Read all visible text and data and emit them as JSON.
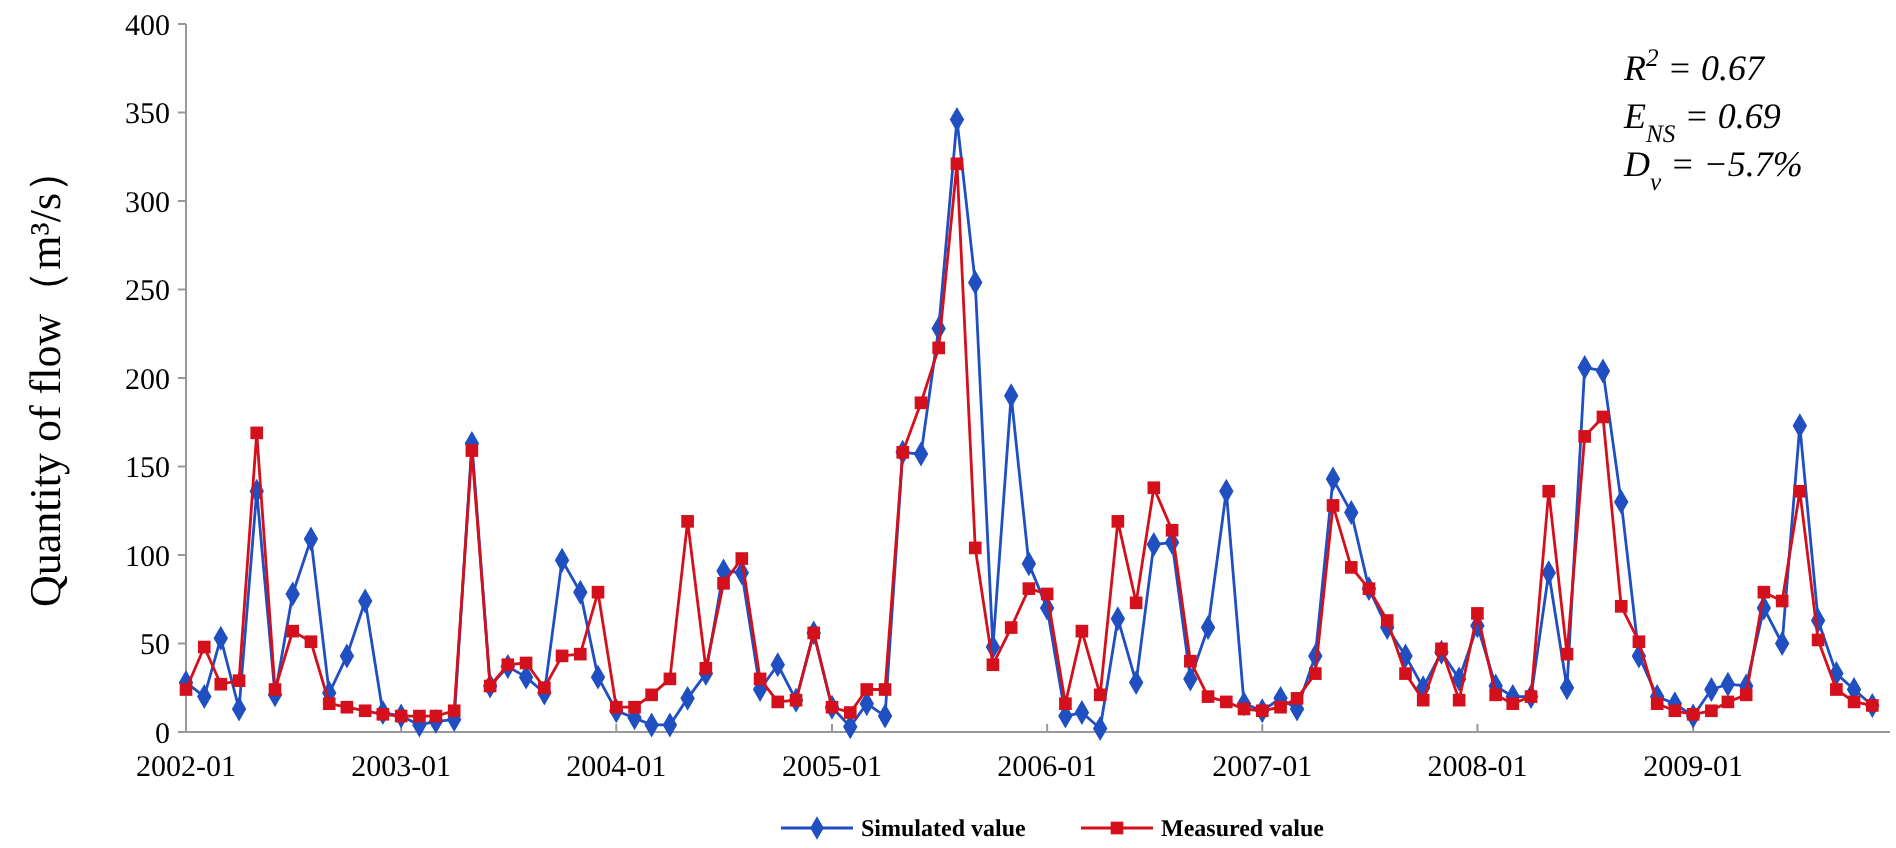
{
  "chart_data": {
    "type": "line",
    "xlabel": null,
    "ylabel": "Quantity of flow（m³/s）",
    "x": [
      "2002-01",
      "2002-02",
      "2002-03",
      "2002-04",
      "2002-05",
      "2002-06",
      "2002-07",
      "2002-08",
      "2002-09",
      "2002-10",
      "2002-11",
      "2002-12",
      "2003-01",
      "2003-02",
      "2003-03",
      "2003-04",
      "2003-05",
      "2003-06",
      "2003-07",
      "2003-08",
      "2003-09",
      "2003-10",
      "2003-11",
      "2003-12",
      "2004-01",
      "2004-02",
      "2004-03",
      "2004-04",
      "2004-05",
      "2004-06",
      "2004-07",
      "2004-08",
      "2004-09",
      "2004-10",
      "2004-11",
      "2004-12",
      "2005-01",
      "2005-02",
      "2005-03",
      "2005-04",
      "2005-05",
      "2005-06",
      "2005-07",
      "2005-08",
      "2005-09",
      "2005-10",
      "2005-11",
      "2005-12",
      "2006-01",
      "2006-02",
      "2006-03",
      "2006-04",
      "2006-05",
      "2006-06",
      "2006-07",
      "2006-08",
      "2006-09",
      "2006-10",
      "2006-11",
      "2006-12",
      "2007-01",
      "2007-02",
      "2007-03",
      "2007-04",
      "2007-05",
      "2007-06",
      "2007-07",
      "2007-08",
      "2007-09",
      "2007-10",
      "2007-11",
      "2007-12",
      "2008-01",
      "2008-02",
      "2008-03",
      "2008-04",
      "2008-05",
      "2008-06",
      "2008-07",
      "2008-08",
      "2008-09",
      "2008-10",
      "2008-11",
      "2008-12",
      "2009-01",
      "2009-02",
      "2009-03",
      "2009-04",
      "2009-05",
      "2009-06",
      "2009-07",
      "2009-08",
      "2009-09",
      "2009-10",
      "2009-11"
    ],
    "series": [
      {
        "name": "Simulated value",
        "color": "#1f4fc0",
        "marker": "diamond",
        "values": [
          28,
          20,
          53,
          13,
          136,
          21,
          78,
          109,
          22,
          43,
          74,
          11,
          9,
          4,
          6,
          7,
          163,
          26,
          37,
          31,
          22,
          97,
          79,
          31,
          12,
          8,
          4,
          4,
          19,
          33,
          91,
          90,
          24,
          38,
          18,
          56,
          14,
          3,
          16,
          9,
          158,
          157,
          228,
          346,
          254,
          48,
          190,
          95,
          70,
          9,
          11,
          2,
          64,
          28,
          106,
          107,
          30,
          59,
          136,
          16,
          12,
          19,
          13,
          43,
          143,
          124,
          81,
          59,
          43,
          25,
          45,
          30,
          60,
          26,
          20,
          20,
          90,
          25,
          206,
          204,
          130,
          43,
          20,
          16,
          9,
          24,
          27,
          26,
          70,
          50,
          173,
          63,
          33,
          24,
          15
        ]
      },
      {
        "name": "Measured value",
        "color": "#d4101c",
        "marker": "square",
        "values": [
          24,
          48,
          27,
          29,
          169,
          24,
          57,
          51,
          16,
          14,
          12,
          10,
          9,
          9,
          9,
          12,
          159,
          26,
          38,
          39,
          25,
          43,
          44,
          79,
          14,
          14,
          21,
          30,
          119,
          36,
          84,
          98,
          30,
          17,
          18,
          56,
          14,
          11,
          24,
          24,
          158,
          186,
          217,
          321,
          104,
          38,
          59,
          81,
          78,
          16,
          57,
          21,
          119,
          73,
          138,
          114,
          40,
          20,
          17,
          13,
          12,
          14,
          19,
          33,
          128,
          93,
          81,
          63,
          33,
          18,
          47,
          18,
          67,
          21,
          16,
          20,
          136,
          44,
          167,
          178,
          71,
          51,
          16,
          12,
          10,
          12,
          17,
          21,
          79,
          74,
          136,
          52,
          24,
          17,
          15
        ]
      }
    ],
    "xlim": [
      "2002-01",
      "2009-12"
    ],
    "xticks": [
      {
        "value": "2002-01",
        "label": "2002-01"
      },
      {
        "value": "2003-01",
        "label": "2003-01"
      },
      {
        "value": "2004-01",
        "label": "2004-01"
      },
      {
        "value": "2005-01",
        "label": "2005-01"
      },
      {
        "value": "2006-01",
        "label": "2006-01"
      },
      {
        "value": "2007-01",
        "label": "2007-01"
      },
      {
        "value": "2008-01",
        "label": "2008-01"
      },
      {
        "value": "2009-01",
        "label": "2009-01"
      }
    ],
    "ylim": [
      0,
      400
    ],
    "yticks": [
      0,
      50,
      100,
      150,
      200,
      250,
      300,
      350,
      400
    ],
    "grid": false,
    "legend": "bottom",
    "line_style": "solid",
    "annotations": [
      "R$^{2}$ = 0.67",
      "E$_{NS}$ = 0.69",
      "D$_{v}$ = −5.7%"
    ]
  }
}
